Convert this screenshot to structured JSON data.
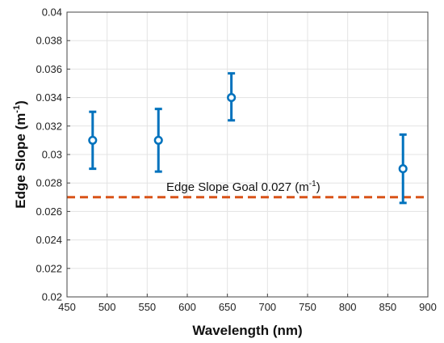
{
  "chart_data": {
    "type": "scatter",
    "xlabel": "Wavelength (nm)",
    "ylabel_main": "Edge Slope (m",
    "ylabel_sup": "-1",
    "ylabel_close": ")",
    "xlim": [
      450,
      900
    ],
    "ylim": [
      0.02,
      0.04
    ],
    "x_ticks": [
      450,
      500,
      550,
      600,
      650,
      700,
      750,
      800,
      850,
      900
    ],
    "x_tick_labels": [
      "450",
      "500",
      "550",
      "600",
      "650",
      "700",
      "750",
      "800",
      "850",
      "900"
    ],
    "y_ticks": [
      0.02,
      0.022,
      0.024,
      0.026,
      0.028,
      0.03,
      0.032,
      0.034,
      0.036,
      0.038,
      0.04
    ],
    "y_tick_labels": [
      "0.02",
      "0.022",
      "0.024",
      "0.026",
      "0.028",
      "0.03",
      "0.032",
      "0.034",
      "0.036",
      "0.038",
      "0.04"
    ],
    "grid": true,
    "series": [
      {
        "points": [
          {
            "x": 482,
            "y": 0.031,
            "low": 0.029,
            "high": 0.033
          },
          {
            "x": 564,
            "y": 0.031,
            "low": 0.0288,
            "high": 0.0332
          },
          {
            "x": 655,
            "y": 0.034,
            "low": 0.0324,
            "high": 0.0357
          },
          {
            "x": 869,
            "y": 0.029,
            "low": 0.0266,
            "high": 0.0314
          }
        ],
        "color": "#0072BD"
      }
    ],
    "reference_line": {
      "y": 0.027,
      "color": "#D95319",
      "label_main": "Edge Slope Goal 0.027 (m",
      "label_sup": "-1",
      "label_close": ")"
    }
  }
}
